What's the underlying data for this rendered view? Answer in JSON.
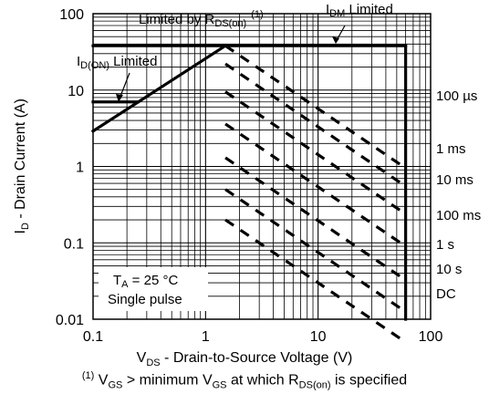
{
  "chart_data": {
    "type": "line",
    "xscale": "log",
    "yscale": "log",
    "xlim": [
      0.1,
      100
    ],
    "ylim": [
      0.01,
      100
    ],
    "grid": true,
    "x_ticks": [
      "0.1",
      "1",
      "10",
      "100"
    ],
    "y_ticks": [
      "0.01",
      "0.1",
      "1",
      "10",
      "100"
    ],
    "xlabel": {
      "main": "V",
      "sub": "DS",
      "rest": " - Drain-to-Source Voltage (V)"
    },
    "ylabel": {
      "main": "I",
      "sub": "D",
      "rest": " - Drain Current (A)"
    },
    "footnote": {
      "sup": "(1)",
      "p1": " V",
      "s1": "GS",
      "p2": " > minimum V",
      "s2": "GS",
      "p3": " at which R",
      "s3": "DS(on)",
      "p4": " is specified"
    },
    "annotations": {
      "rds": {
        "pre": "Limited by R",
        "sub": "DS(on)",
        "sup": "(1)"
      },
      "idm": {
        "pre": "I",
        "sub": "DM",
        "post": " Limited"
      },
      "idon": {
        "pre": "I",
        "sub": "D(ON)",
        "post": " Limited"
      },
      "conditions": {
        "ta_pre": "T",
        "ta_sub": "A",
        "ta_post": " = 25 °C",
        "pulse": "Single pulse"
      }
    },
    "series": [
      {
        "name": "100 µs",
        "x": [
          1.5,
          60
        ],
        "y": [
          38,
          0.95
        ]
      },
      {
        "name": "1 ms",
        "x": [
          1.5,
          60
        ],
        "y": [
          22,
          0.55
        ]
      },
      {
        "name": "10 ms",
        "x": [
          1.5,
          60
        ],
        "y": [
          9.5,
          0.238
        ]
      },
      {
        "name": "100 ms",
        "x": [
          1.5,
          60
        ],
        "y": [
          3.6,
          0.09
        ]
      },
      {
        "name": "1 s",
        "x": [
          1.5,
          60
        ],
        "y": [
          1.3,
          0.0325
        ]
      },
      {
        "name": "10 s",
        "x": [
          1.5,
          60
        ],
        "y": [
          0.5,
          0.0125
        ]
      },
      {
        "name": "DC",
        "x": [
          1.5,
          60
        ],
        "y": [
          0.2,
          0.005
        ]
      }
    ],
    "limits": {
      "rds_on": {
        "x": [
          0.1,
          1.5
        ],
        "y": [
          2.9,
          38
        ]
      },
      "idm": {
        "x": [
          0.1,
          60
        ],
        "y": [
          38,
          38
        ]
      },
      "id_on": {
        "x": [
          0.1,
          0.25
        ],
        "y": [
          7,
          7
        ]
      },
      "vds_max": {
        "x": [
          60,
          60
        ],
        "y": [
          0.01,
          38
        ]
      }
    }
  }
}
